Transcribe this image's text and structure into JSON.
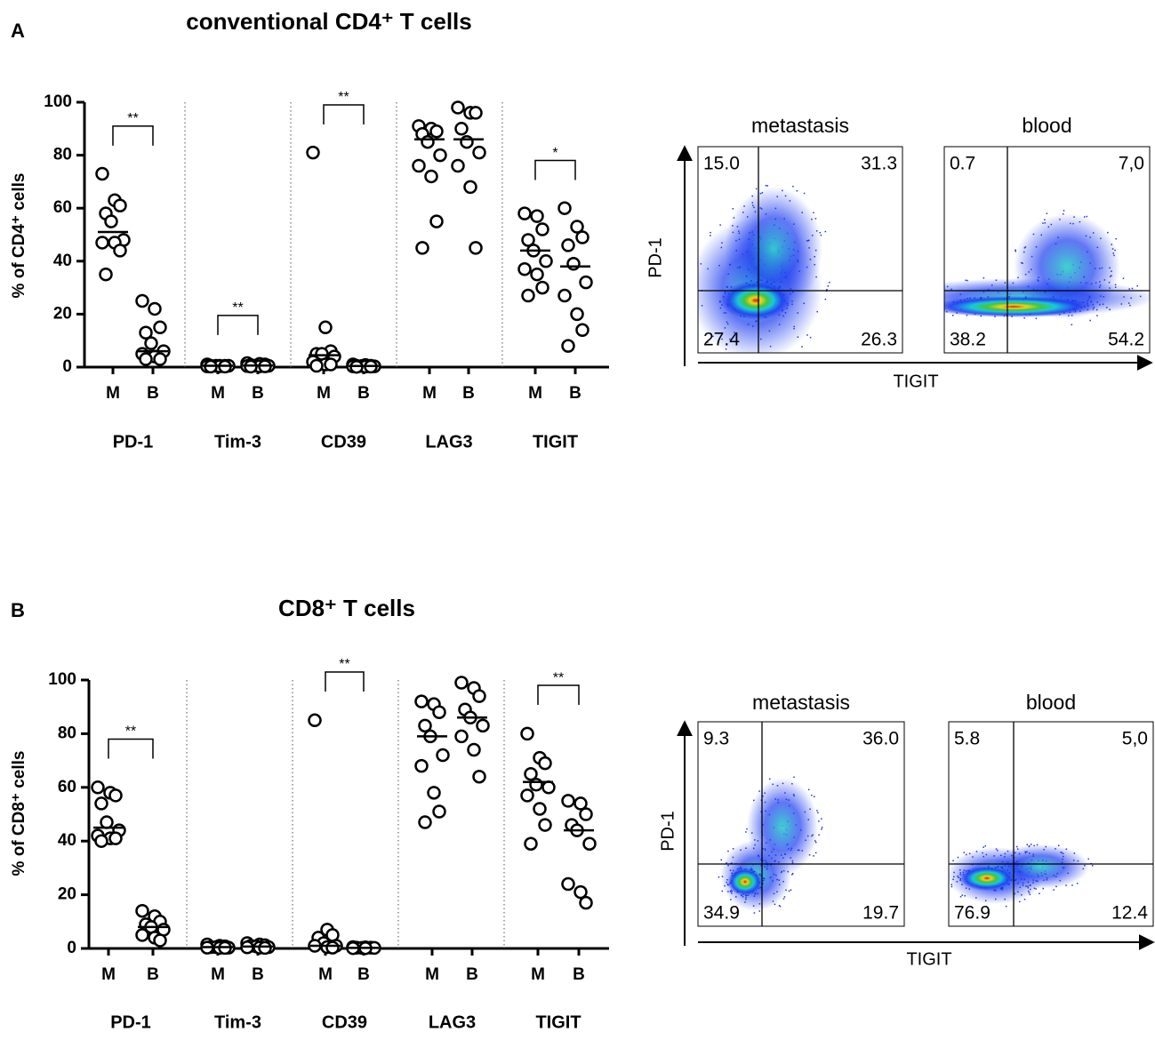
{
  "chart_data": [
    {
      "type": "dot",
      "panel_label": "A",
      "title": "conventional CD4⁺  T cells",
      "y_label": "% of CD4⁺ cells",
      "ylim": [
        0,
        100
      ],
      "yticks": [
        0,
        20,
        40,
        60,
        80,
        100
      ],
      "groups": [
        "PD-1",
        "Tim-3",
        "CD39",
        "LAG3",
        "TIGIT"
      ],
      "subgroups": [
        "M",
        "B"
      ],
      "values": [
        [
          [
            73,
            63,
            61,
            58,
            55,
            48,
            47,
            47,
            44,
            35
          ],
          [
            25,
            22,
            15,
            13,
            9,
            6,
            5,
            4,
            3,
            3
          ]
        ],
        [
          [
            1,
            0.5,
            0.5,
            0.5,
            0.5,
            0.5,
            0.3,
            0.3,
            0.2,
            0.2
          ],
          [
            1.5,
            1.2,
            1,
            0.8,
            0.6,
            0.5,
            0.4,
            0.3,
            0.3,
            0.2
          ]
        ],
        [
          [
            81,
            15,
            6,
            5,
            5,
            4,
            2,
            1,
            1,
            0.5
          ],
          [
            1,
            0.8,
            0.5,
            0.5,
            0.4,
            0.3,
            0.3,
            0.2,
            0.2,
            0.1
          ]
        ],
        [
          [
            91,
            90,
            89,
            88,
            85,
            80,
            76,
            72,
            55,
            45
          ],
          [
            98,
            96,
            96,
            90,
            85,
            81,
            76,
            68,
            45
          ]
        ],
        [
          [
            58,
            57,
            52,
            48,
            44,
            40,
            37,
            35,
            30,
            27
          ],
          [
            60,
            53,
            49,
            46,
            39,
            32,
            27,
            20,
            14,
            8
          ]
        ]
      ],
      "medians": [
        [
          51,
          6
        ],
        [
          0.5,
          0.6
        ],
        [
          4.5,
          0.4
        ],
        [
          86,
          86
        ],
        [
          44,
          38
        ]
      ],
      "significance": [
        "**",
        "**",
        "**",
        null,
        "*"
      ]
    },
    {
      "type": "dot",
      "panel_label": "B",
      "title": "CD8⁺ T cells",
      "y_label": "% of CD8⁺ cells",
      "ylim": [
        0,
        100
      ],
      "yticks": [
        0,
        20,
        40,
        60,
        80,
        100
      ],
      "groups": [
        "PD-1",
        "Tim-3",
        "CD39",
        "LAG3",
        "TIGIT"
      ],
      "subgroups": [
        "M",
        "B"
      ],
      "values": [
        [
          [
            60,
            58,
            57,
            54,
            47,
            44,
            42,
            41,
            41,
            40
          ],
          [
            14,
            12,
            10,
            9,
            8,
            7,
            5,
            4,
            3
          ]
        ],
        [
          [
            1.5,
            1,
            0.8,
            0.5,
            0.5,
            0.3,
            0.3,
            0.2,
            0.2
          ],
          [
            2,
            1.5,
            1.2,
            1,
            0.8,
            0.5,
            0.4,
            0.3,
            0.2
          ]
        ],
        [
          [
            85,
            7,
            5,
            4,
            2,
            1,
            1,
            0.5,
            0.3
          ],
          [
            0.5,
            0.4,
            0.3,
            0.3,
            0.2,
            0.2,
            0.1,
            0.1
          ]
        ],
        [
          [
            92,
            91,
            88,
            83,
            79,
            72,
            68,
            58,
            51,
            47
          ],
          [
            99,
            97,
            94,
            89,
            86,
            83,
            79,
            74,
            64
          ]
        ],
        [
          [
            80,
            71,
            69,
            65,
            61,
            60,
            57,
            52,
            46,
            39
          ],
          [
            55,
            54,
            50,
            46,
            44,
            39,
            24,
            21,
            17
          ]
        ]
      ],
      "medians": [
        [
          45,
          8
        ],
        [
          0.5,
          0.7
        ],
        [
          1,
          0.2
        ],
        [
          79,
          86
        ],
        [
          62,
          44
        ]
      ],
      "significance": [
        "**",
        null,
        "**",
        null,
        "**"
      ]
    }
  ],
  "flow": [
    {
      "x_label": "TIGIT",
      "y_label": "PD-1",
      "plots": [
        {
          "title": "metastasis",
          "quadrants": [
            "15.0",
            "31.3",
            "27.4",
            "26.3"
          ]
        },
        {
          "title": "blood",
          "quadrants": [
            "0.7",
            "7,0",
            "38.2",
            "54.2"
          ]
        }
      ]
    },
    {
      "x_label": "TIGIT",
      "y_label": "PD-1",
      "plots": [
        {
          "title": "metastasis",
          "quadrants": [
            "9.3",
            "36.0",
            "34.9",
            "19.7"
          ]
        },
        {
          "title": "blood",
          "quadrants": [
            "5.8",
            "5,0",
            "76.9",
            "12.4"
          ]
        }
      ]
    }
  ]
}
